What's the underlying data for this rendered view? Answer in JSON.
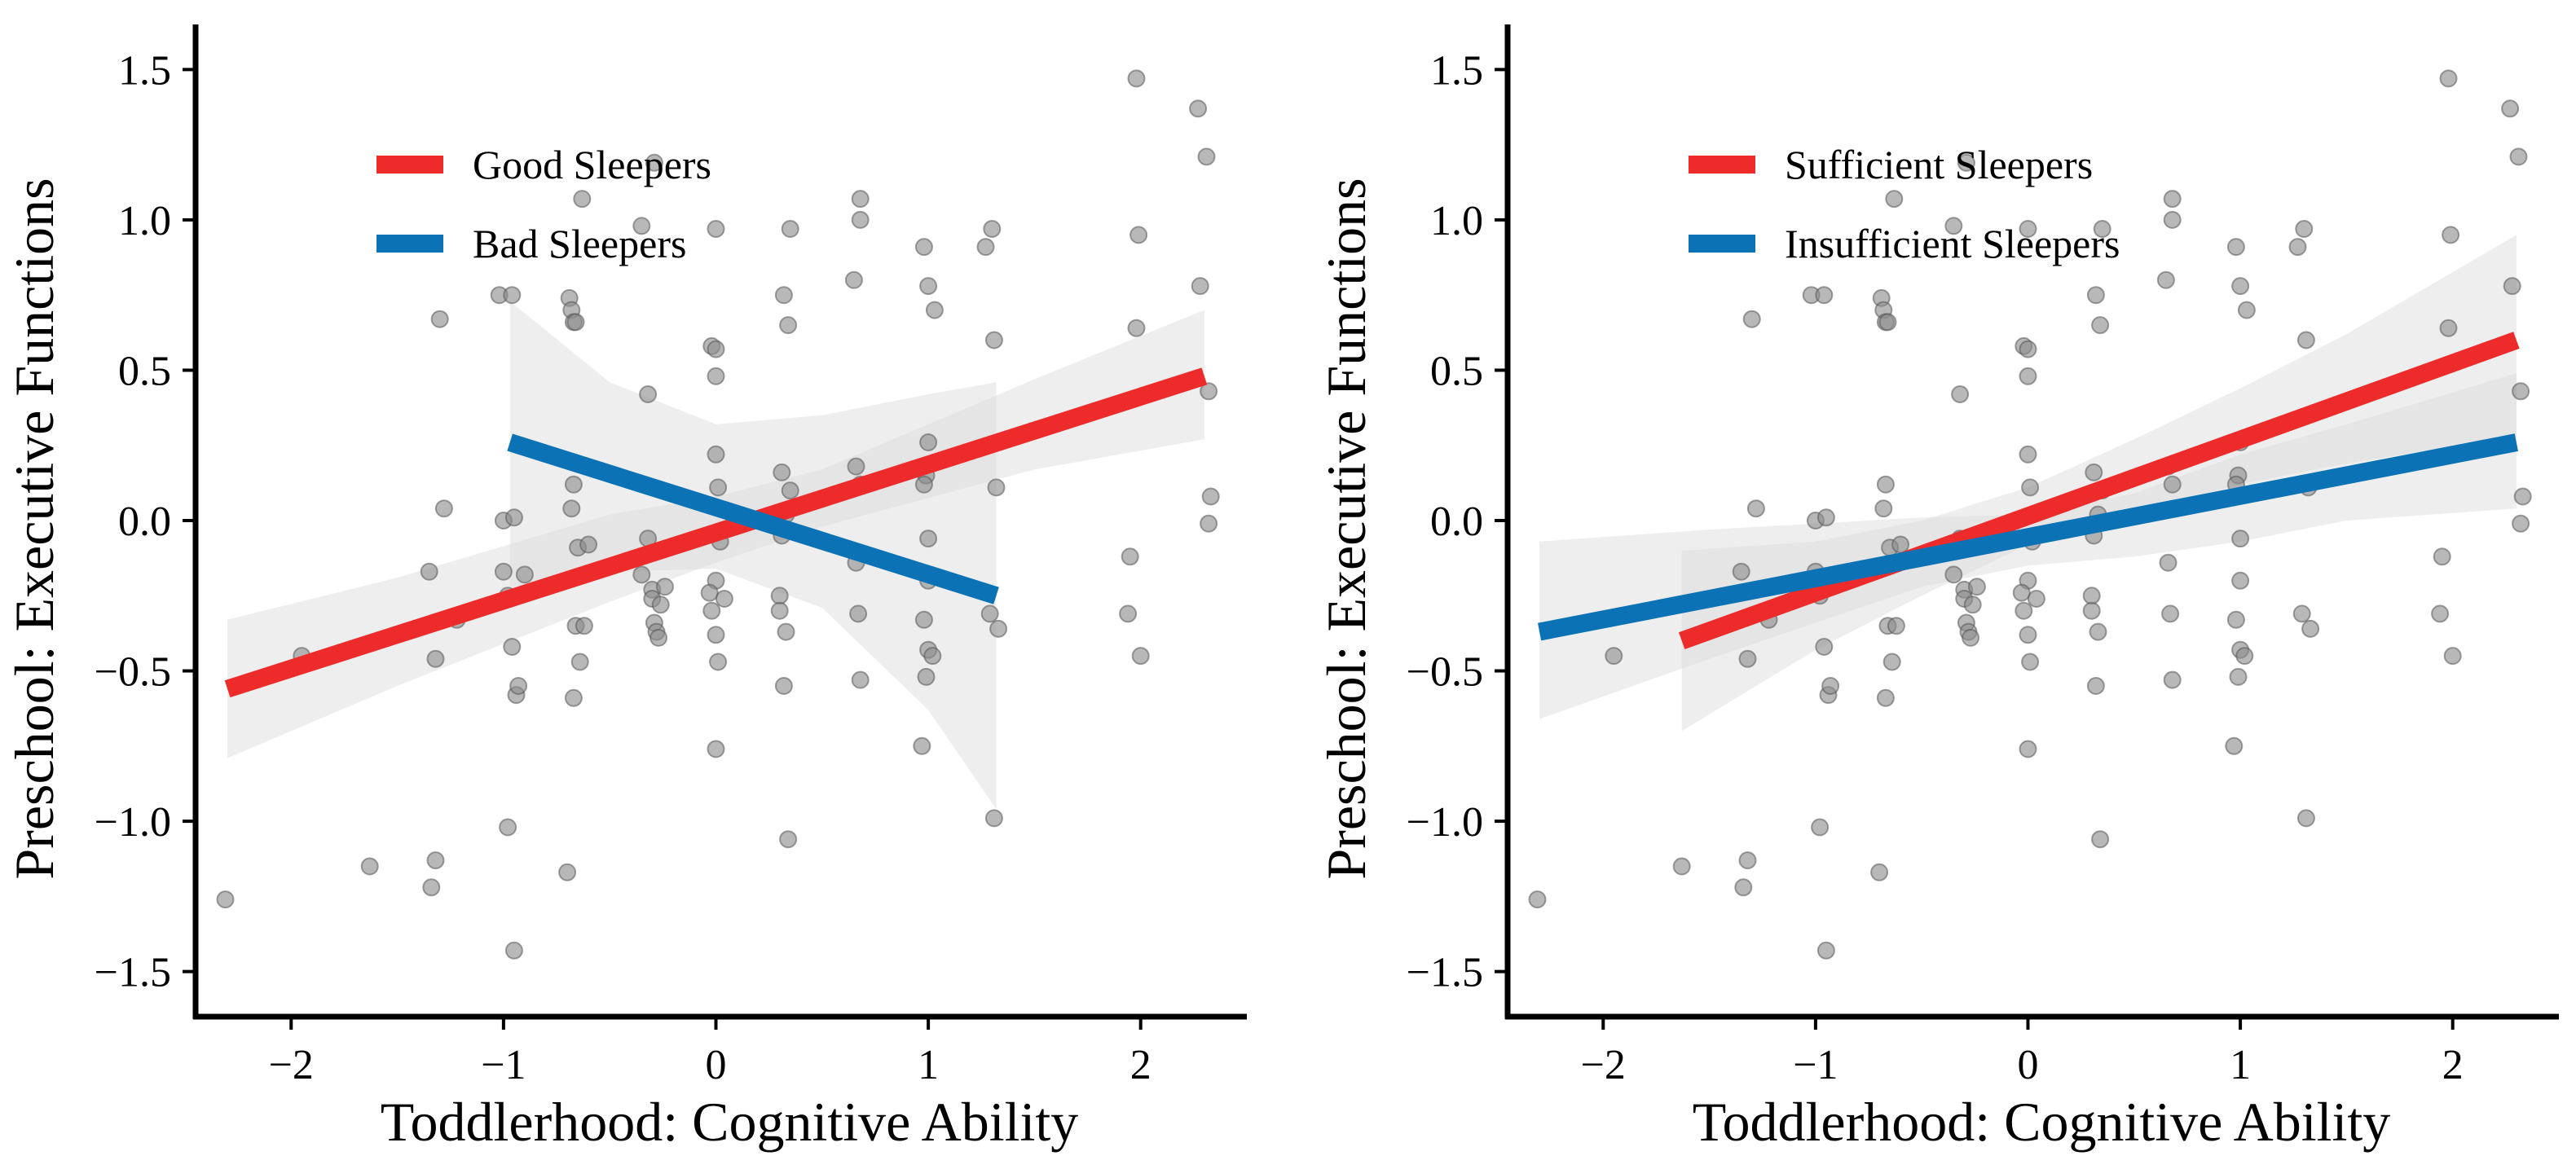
{
  "chart_data": [
    {
      "type": "scatter",
      "panel": "left",
      "xlabel": "Toddlerhood: Cognitive Ability",
      "ylabel": "Preschool: Executive Functions",
      "xlim": [
        -2.45,
        2.5
      ],
      "ylim": [
        -1.65,
        1.65
      ],
      "x_ticks": [
        -2,
        -1,
        0,
        1,
        2
      ],
      "x_tick_labels": [
        "−2",
        "−1",
        "0",
        "1",
        "2"
      ],
      "y_ticks": [
        -1.5,
        -1.0,
        -0.5,
        0.0,
        0.5,
        1.0,
        1.5
      ],
      "y_tick_labels": [
        "−1.5",
        "−1.0",
        "−0.5",
        "0.0",
        "0.5",
        "1.0",
        "1.5"
      ],
      "grid": false,
      "legend_position": "top-left",
      "colors": {
        "points": "#8c8c8c",
        "band": "#d9d9d9"
      },
      "series": [
        {
          "name": "Good Sleepers",
          "color": "#ee2b2b",
          "x": [
            -2.3,
            2.3
          ],
          "y": [
            -0.56,
            0.48
          ],
          "ci_x": [
            -2.3,
            -1.5,
            -0.5,
            0.0,
            0.5,
            1.5,
            2.3
          ],
          "ci_lower": [
            -0.79,
            -0.55,
            -0.27,
            -0.14,
            -0.02,
            0.17,
            0.27
          ],
          "ci_upper": [
            -0.33,
            -0.19,
            0.02,
            0.08,
            0.17,
            0.47,
            0.7
          ]
        },
        {
          "name": "Bad Sleepers",
          "color": "#0a72b5",
          "x": [
            -0.97,
            1.32
          ],
          "y": [
            0.26,
            -0.25
          ],
          "ci_x": [
            -0.97,
            -0.5,
            0.0,
            0.5,
            1.0,
            1.32
          ],
          "ci_lower": [
            -0.22,
            -0.17,
            -0.16,
            -0.29,
            -0.63,
            -0.96
          ],
          "ci_upper": [
            0.73,
            0.46,
            0.32,
            0.35,
            0.42,
            0.46
          ]
        }
      ],
      "points": [
        [
          -2.31,
          -1.26
        ],
        [
          -1.95,
          -0.45
        ],
        [
          -1.63,
          -1.15
        ],
        [
          -1.35,
          -0.17
        ],
        [
          -1.34,
          -1.22
        ],
        [
          -1.32,
          -1.13
        ],
        [
          -1.3,
          0.67
        ],
        [
          -1.32,
          -0.46
        ],
        [
          -1.28,
          0.04
        ],
        [
          -1.22,
          -0.33
        ],
        [
          -1.02,
          0.75
        ],
        [
          -1.0,
          0.0
        ],
        [
          -1.0,
          -0.17
        ],
        [
          -0.98,
          -0.25
        ],
        [
          -0.98,
          -1.02
        ],
        [
          -0.96,
          -0.42
        ],
        [
          -0.94,
          -0.58
        ],
        [
          -0.93,
          -0.55
        ],
        [
          -0.96,
          0.75
        ],
        [
          -0.95,
          0.01
        ],
        [
          -0.9,
          -0.18
        ],
        [
          -0.95,
          -1.43
        ],
        [
          -0.69,
          0.74
        ],
        [
          -0.68,
          0.7
        ],
        [
          -0.67,
          0.66
        ],
        [
          -0.66,
          0.66
        ],
        [
          -0.67,
          0.12
        ],
        [
          -0.65,
          -0.09
        ],
        [
          -0.66,
          -0.35
        ],
        [
          -0.64,
          -0.47
        ],
        [
          -0.67,
          -0.59
        ],
        [
          -0.7,
          -1.17
        ],
        [
          -0.68,
          0.04
        ],
        [
          -0.6,
          -0.08
        ],
        [
          -0.62,
          -0.35
        ],
        [
          -0.63,
          1.07
        ],
        [
          -0.35,
          0.98
        ],
        [
          -0.32,
          0.42
        ],
        [
          -0.32,
          -0.06
        ],
        [
          -0.3,
          -0.23
        ],
        [
          -0.3,
          -0.26
        ],
        [
          -0.29,
          -0.34
        ],
        [
          -0.28,
          -0.37
        ],
        [
          -0.27,
          -0.39
        ],
        [
          -0.26,
          -0.28
        ],
        [
          -0.29,
          1.19
        ],
        [
          -0.35,
          -0.18
        ],
        [
          -0.24,
          -0.22
        ],
        [
          -0.02,
          0.58
        ],
        [
          0.0,
          0.57
        ],
        [
          0.0,
          0.48
        ],
        [
          0.0,
          0.22
        ],
        [
          0.01,
          0.11
        ],
        [
          0.0,
          -0.2
        ],
        [
          -0.03,
          -0.24
        ],
        [
          -0.02,
          -0.3
        ],
        [
          0.0,
          -0.38
        ],
        [
          0.01,
          -0.47
        ],
        [
          0.0,
          -0.76
        ],
        [
          0.04,
          -0.26
        ],
        [
          0.0,
          0.97
        ],
        [
          0.02,
          -0.07
        ],
        [
          0.32,
          0.75
        ],
        [
          0.34,
          0.65
        ],
        [
          0.31,
          0.16
        ],
        [
          0.35,
          0.1
        ],
        [
          0.31,
          -0.05
        ],
        [
          0.3,
          -0.25
        ],
        [
          0.33,
          -0.37
        ],
        [
          0.32,
          -0.55
        ],
        [
          0.34,
          -1.06
        ],
        [
          0.35,
          0.97
        ],
        [
          0.3,
          -0.3
        ],
        [
          0.33,
          0.02
        ],
        [
          0.65,
          0.8
        ],
        [
          0.68,
          1.07
        ],
        [
          0.68,
          1.0
        ],
        [
          0.66,
          0.18
        ],
        [
          0.66,
          -0.14
        ],
        [
          0.67,
          -0.31
        ],
        [
          0.68,
          -0.53
        ],
        [
          0.68,
          0.12
        ],
        [
          0.98,
          0.91
        ],
        [
          1.0,
          0.78
        ],
        [
          1.03,
          0.7
        ],
        [
          1.0,
          0.26
        ],
        [
          0.99,
          0.15
        ],
        [
          0.98,
          0.12
        ],
        [
          1.0,
          -0.06
        ],
        [
          0.98,
          -0.33
        ],
        [
          1.0,
          -0.43
        ],
        [
          0.99,
          -0.52
        ],
        [
          0.97,
          -0.75
        ],
        [
          1.02,
          -0.45
        ],
        [
          1.0,
          -0.2
        ],
        [
          1.3,
          0.97
        ],
        [
          1.27,
          0.91
        ],
        [
          1.31,
          0.6
        ],
        [
          1.32,
          0.11
        ],
        [
          1.29,
          -0.31
        ],
        [
          1.33,
          -0.36
        ],
        [
          1.31,
          -0.99
        ],
        [
          1.95,
          -0.12
        ],
        [
          1.94,
          -0.31
        ],
        [
          1.98,
          1.47
        ],
        [
          1.99,
          0.95
        ],
        [
          1.98,
          0.64
        ],
        [
          2.0,
          -0.45
        ],
        [
          2.27,
          1.37
        ],
        [
          2.31,
          1.21
        ],
        [
          2.28,
          0.78
        ],
        [
          2.32,
          0.43
        ],
        [
          2.33,
          0.08
        ],
        [
          2.32,
          -0.01
        ]
      ]
    },
    {
      "type": "scatter",
      "panel": "right",
      "xlabel": "Toddlerhood: Cognitive Ability",
      "ylabel": "Preschool: Executive Functions",
      "xlim": [
        -2.45,
        2.5
      ],
      "ylim": [
        -1.65,
        1.65
      ],
      "x_ticks": [
        -2,
        -1,
        0,
        1,
        2
      ],
      "x_tick_labels": [
        "−2",
        "−1",
        "0",
        "1",
        "2"
      ],
      "y_ticks": [
        -1.5,
        -1.0,
        -0.5,
        0.0,
        0.5,
        1.0,
        1.5
      ],
      "y_tick_labels": [
        "−1.5",
        "−1.0",
        "−0.5",
        "0.0",
        "0.5",
        "1.0",
        "1.5"
      ],
      "grid": false,
      "legend_position": "top-left",
      "colors": {
        "points": "#8c8c8c",
        "band": "#d9d9d9"
      },
      "series": [
        {
          "name": "Sufficient Sleepers",
          "color": "#ee2b2b",
          "x": [
            -1.63,
            2.3
          ],
          "y": [
            -0.4,
            0.6
          ],
          "ci_x": [
            -1.63,
            -1.0,
            -0.5,
            0.0,
            0.5,
            1.0,
            1.5,
            2.3
          ],
          "ci_lower": [
            -0.7,
            -0.43,
            -0.25,
            -0.08,
            0.03,
            0.12,
            0.19,
            0.28
          ],
          "ci_upper": [
            -0.1,
            -0.07,
            0.0,
            0.11,
            0.27,
            0.44,
            0.62,
            0.95
          ]
        },
        {
          "name": "Insufficient Sleepers",
          "color": "#0a72b5",
          "x": [
            -2.3,
            2.3
          ],
          "y": [
            -0.37,
            0.26
          ],
          "ci_x": [
            -2.3,
            -1.5,
            -0.5,
            0.0,
            0.5,
            1.0,
            1.5,
            2.3
          ],
          "ci_lower": [
            -0.66,
            -0.46,
            -0.22,
            -0.15,
            -0.12,
            -0.07,
            0.0,
            0.04
          ],
          "ci_upper": [
            -0.07,
            -0.03,
            0.01,
            0.02,
            0.09,
            0.22,
            0.32,
            0.49
          ]
        }
      ],
      "points": [
        [
          -2.31,
          -1.26
        ],
        [
          -1.95,
          -0.45
        ],
        [
          -1.63,
          -1.15
        ],
        [
          -1.35,
          -0.17
        ],
        [
          -1.34,
          -1.22
        ],
        [
          -1.32,
          -1.13
        ],
        [
          -1.3,
          0.67
        ],
        [
          -1.32,
          -0.46
        ],
        [
          -1.28,
          0.04
        ],
        [
          -1.22,
          -0.33
        ],
        [
          -1.02,
          0.75
        ],
        [
          -1.0,
          0.0
        ],
        [
          -1.0,
          -0.17
        ],
        [
          -0.98,
          -0.25
        ],
        [
          -0.98,
          -1.02
        ],
        [
          -0.96,
          -0.42
        ],
        [
          -0.94,
          -0.58
        ],
        [
          -0.93,
          -0.55
        ],
        [
          -0.96,
          0.75
        ],
        [
          -0.95,
          0.01
        ],
        [
          -0.9,
          -0.18
        ],
        [
          -0.95,
          -1.43
        ],
        [
          -0.69,
          0.74
        ],
        [
          -0.68,
          0.7
        ],
        [
          -0.67,
          0.66
        ],
        [
          -0.66,
          0.66
        ],
        [
          -0.67,
          0.12
        ],
        [
          -0.65,
          -0.09
        ],
        [
          -0.66,
          -0.35
        ],
        [
          -0.64,
          -0.47
        ],
        [
          -0.67,
          -0.59
        ],
        [
          -0.7,
          -1.17
        ],
        [
          -0.68,
          0.04
        ],
        [
          -0.6,
          -0.08
        ],
        [
          -0.62,
          -0.35
        ],
        [
          -0.63,
          1.07
        ],
        [
          -0.35,
          0.98
        ],
        [
          -0.32,
          0.42
        ],
        [
          -0.32,
          -0.06
        ],
        [
          -0.3,
          -0.23
        ],
        [
          -0.3,
          -0.26
        ],
        [
          -0.29,
          -0.34
        ],
        [
          -0.28,
          -0.37
        ],
        [
          -0.27,
          -0.39
        ],
        [
          -0.26,
          -0.28
        ],
        [
          -0.29,
          1.19
        ],
        [
          -0.35,
          -0.18
        ],
        [
          -0.24,
          -0.22
        ],
        [
          -0.02,
          0.58
        ],
        [
          0.0,
          0.57
        ],
        [
          0.0,
          0.48
        ],
        [
          0.0,
          0.22
        ],
        [
          0.01,
          0.11
        ],
        [
          0.0,
          -0.2
        ],
        [
          -0.03,
          -0.24
        ],
        [
          -0.02,
          -0.3
        ],
        [
          0.0,
          -0.38
        ],
        [
          0.01,
          -0.47
        ],
        [
          0.0,
          -0.76
        ],
        [
          0.04,
          -0.26
        ],
        [
          0.0,
          0.97
        ],
        [
          0.02,
          -0.07
        ],
        [
          0.32,
          0.75
        ],
        [
          0.34,
          0.65
        ],
        [
          0.31,
          0.16
        ],
        [
          0.35,
          0.1
        ],
        [
          0.31,
          -0.05
        ],
        [
          0.3,
          -0.25
        ],
        [
          0.33,
          -0.37
        ],
        [
          0.32,
          -0.55
        ],
        [
          0.34,
          -1.06
        ],
        [
          0.35,
          0.97
        ],
        [
          0.3,
          -0.3
        ],
        [
          0.33,
          0.02
        ],
        [
          0.65,
          0.8
        ],
        [
          0.68,
          1.07
        ],
        [
          0.68,
          1.0
        ],
        [
          0.66,
          0.18
        ],
        [
          0.66,
          -0.14
        ],
        [
          0.67,
          -0.31
        ],
        [
          0.68,
          -0.53
        ],
        [
          0.68,
          0.12
        ],
        [
          0.98,
          0.91
        ],
        [
          1.0,
          0.78
        ],
        [
          1.03,
          0.7
        ],
        [
          1.0,
          0.26
        ],
        [
          0.99,
          0.15
        ],
        [
          0.98,
          0.12
        ],
        [
          1.0,
          -0.06
        ],
        [
          0.98,
          -0.33
        ],
        [
          1.0,
          -0.43
        ],
        [
          0.99,
          -0.52
        ],
        [
          0.97,
          -0.75
        ],
        [
          1.02,
          -0.45
        ],
        [
          1.0,
          -0.2
        ],
        [
          1.3,
          0.97
        ],
        [
          1.27,
          0.91
        ],
        [
          1.31,
          0.6
        ],
        [
          1.32,
          0.11
        ],
        [
          1.29,
          -0.31
        ],
        [
          1.33,
          -0.36
        ],
        [
          1.31,
          -0.99
        ],
        [
          1.95,
          -0.12
        ],
        [
          1.94,
          -0.31
        ],
        [
          1.98,
          1.47
        ],
        [
          1.99,
          0.95
        ],
        [
          1.98,
          0.64
        ],
        [
          2.0,
          -0.45
        ],
        [
          2.27,
          1.37
        ],
        [
          2.31,
          1.21
        ],
        [
          2.28,
          0.78
        ],
        [
          2.32,
          0.43
        ],
        [
          2.33,
          0.08
        ],
        [
          2.32,
          -0.01
        ]
      ]
    }
  ]
}
